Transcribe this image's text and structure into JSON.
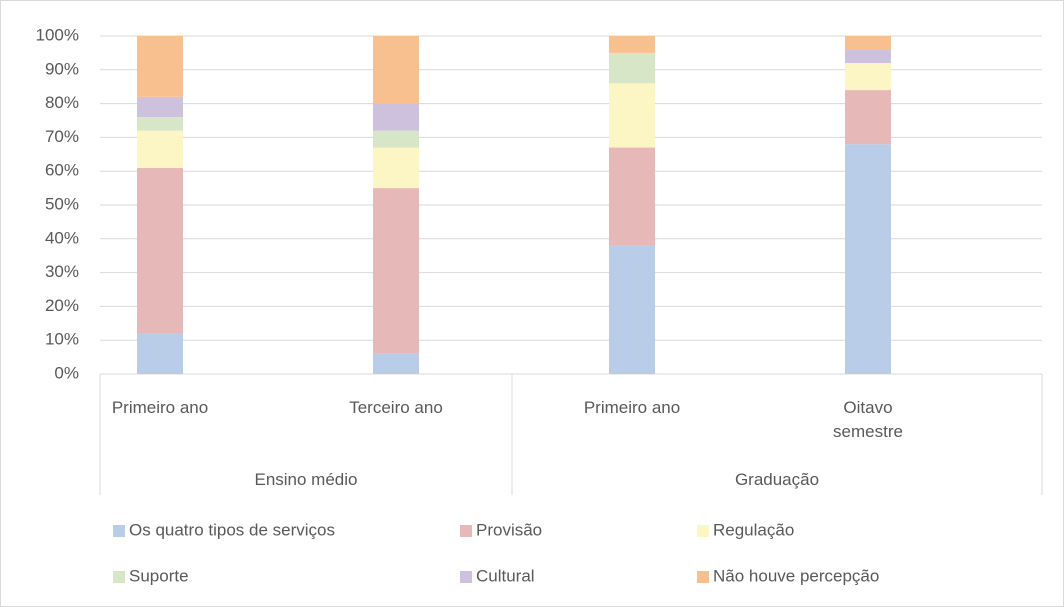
{
  "chart_data": {
    "type": "stacked_bar",
    "groups": [
      {
        "name": "Ensino médio",
        "categories": [
          "Primeiro ano",
          "Terceiro ano"
        ]
      },
      {
        "name": "Graduação",
        "categories": [
          "Primeiro ano",
          "Oitavo semestre"
        ]
      }
    ],
    "series": [
      {
        "name": "Os quatro tipos de serviços",
        "color": "#bacde8",
        "values": [
          12,
          6,
          38,
          68
        ]
      },
      {
        "name": "Provisão",
        "color": "#e7b8b8",
        "values": [
          49,
          49,
          29,
          16
        ]
      },
      {
        "name": "Regulação",
        "color": "#fcf6c4",
        "values": [
          11,
          12,
          19,
          8
        ]
      },
      {
        "name": "Suporte",
        "color": "#d8e6c8",
        "values": [
          4,
          5,
          9,
          0
        ]
      },
      {
        "name": "Cultural",
        "color": "#cdc1de",
        "values": [
          6,
          8,
          0,
          4
        ]
      },
      {
        "name": "Não houve percepção",
        "color": "#f9c08f",
        "values": [
          18,
          20,
          5,
          4
        ]
      }
    ],
    "ylim": [
      0,
      100
    ],
    "yticks": [
      {
        "value": 0,
        "label": "0%"
      },
      {
        "value": 10,
        "label": "10%"
      },
      {
        "value": 20,
        "label": "20%"
      },
      {
        "value": 30,
        "label": "30%"
      },
      {
        "value": 40,
        "label": "40%"
      },
      {
        "value": 50,
        "label": "50%"
      },
      {
        "value": 60,
        "label": "60%"
      },
      {
        "value": 70,
        "label": "70%"
      },
      {
        "value": 80,
        "label": "80%"
      },
      {
        "value": 90,
        "label": "90%"
      },
      {
        "value": 100,
        "label": "100%"
      }
    ],
    "grid": true,
    "legend": "bottom"
  }
}
